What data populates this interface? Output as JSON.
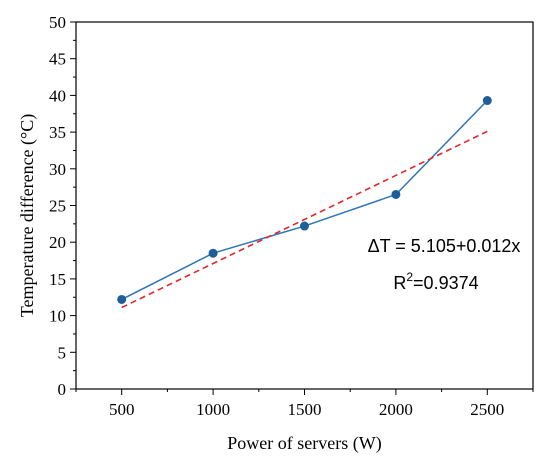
{
  "chart_data": {
    "type": "line",
    "xlabel": "Power of servers (W)",
    "ylabel": "Temperature difference (°C)",
    "xlim": [
      250,
      2750
    ],
    "ylim": [
      0,
      50
    ],
    "x_ticks": [
      500,
      1000,
      1500,
      2000,
      2500
    ],
    "y_ticks": [
      0,
      5,
      10,
      15,
      20,
      25,
      30,
      35,
      40,
      45,
      50
    ],
    "grid": false,
    "series": [
      {
        "x": [
          500,
          1000,
          1500,
          2000,
          2500
        ],
        "values": [
          12.2,
          18.5,
          22.2,
          26.5,
          39.3
        ],
        "color": "#2e75b6",
        "marker": "circle",
        "line_style": "solid"
      },
      {
        "x": [
          500,
          2500
        ],
        "values": [
          11.1,
          35.1
        ],
        "color": "#e0282e",
        "line_style": "dashed"
      }
    ],
    "annotations": {
      "equation": "ΔT = 5.105+0.012x",
      "r2_prefix": "R",
      "r2_sup": "2",
      "r2_value": "=0.9374"
    }
  }
}
